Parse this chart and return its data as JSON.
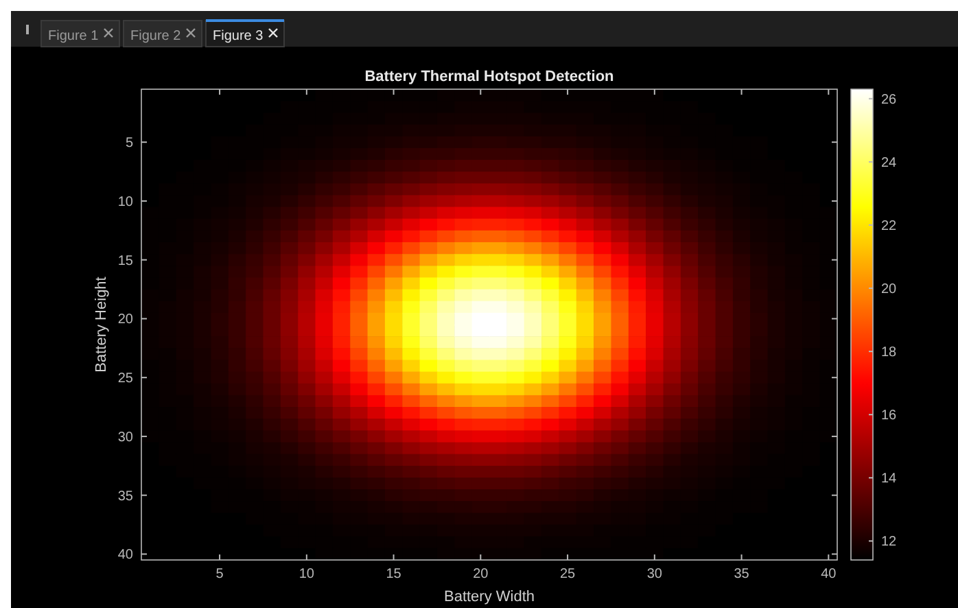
{
  "chart_data": {
    "type": "heatmap",
    "title": "Battery Thermal Hotspot Detection",
    "xlabel": "Battery Width",
    "ylabel": "Battery Height",
    "annotations": [
      "Figure 1",
      "Figure 2",
      "Figure 3"
    ],
    "xlim": [
      0.5,
      40.5
    ],
    "ylim": [
      40.5,
      0.5
    ],
    "xticks": [
      5,
      10,
      15,
      20,
      25,
      30,
      35,
      40
    ],
    "yticks": [
      5,
      10,
      15,
      20,
      25,
      30,
      35,
      40
    ],
    "clim": [
      11.4,
      26.3
    ],
    "cticks": [
      12,
      14,
      16,
      18,
      20,
      22,
      24,
      26
    ],
    "cells": [
      [
        11.4,
        11.4,
        11.4,
        11.4,
        11.4,
        11.4,
        11.4,
        11.4,
        11.4,
        11.4,
        11.5,
        11.5,
        11.5,
        11.5,
        11.5,
        11.5,
        11.5,
        11.6,
        11.6,
        11.6,
        11.6,
        11.6,
        11.6,
        11.5,
        11.5,
        11.5,
        11.5,
        11.5,
        11.5,
        11.5,
        11.4,
        11.4,
        11.4,
        11.4,
        11.4,
        11.4,
        11.4,
        11.4,
        11.4,
        11.4
      ],
      [
        11.4,
        11.4,
        11.4,
        11.4,
        11.4,
        11.4,
        11.4,
        11.4,
        11.5,
        11.5,
        11.5,
        11.5,
        11.5,
        11.6,
        11.6,
        11.6,
        11.6,
        11.6,
        11.7,
        11.7,
        11.7,
        11.7,
        11.6,
        11.6,
        11.6,
        11.6,
        11.6,
        11.5,
        11.5,
        11.5,
        11.5,
        11.5,
        11.4,
        11.4,
        11.4,
        11.4,
        11.4,
        11.4,
        11.4,
        11.4
      ],
      [
        11.4,
        11.4,
        11.4,
        11.4,
        11.4,
        11.4,
        11.4,
        11.5,
        11.5,
        11.5,
        11.5,
        11.6,
        11.6,
        11.6,
        11.7,
        11.7,
        11.7,
        11.8,
        11.8,
        11.8,
        11.8,
        11.8,
        11.8,
        11.7,
        11.7,
        11.7,
        11.6,
        11.6,
        11.6,
        11.5,
        11.5,
        11.5,
        11.5,
        11.4,
        11.4,
        11.4,
        11.4,
        11.4,
        11.4,
        11.4
      ],
      [
        11.4,
        11.4,
        11.4,
        11.4,
        11.4,
        11.4,
        11.5,
        11.5,
        11.5,
        11.6,
        11.6,
        11.7,
        11.7,
        11.8,
        11.8,
        11.9,
        11.9,
        11.9,
        12.0,
        12.0,
        12.0,
        12.0,
        11.9,
        11.9,
        11.9,
        11.8,
        11.8,
        11.7,
        11.7,
        11.6,
        11.6,
        11.5,
        11.5,
        11.5,
        11.4,
        11.4,
        11.4,
        11.4,
        11.4,
        11.4
      ],
      [
        11.4,
        11.4,
        11.4,
        11.4,
        11.5,
        11.5,
        11.5,
        11.5,
        11.6,
        11.6,
        11.7,
        11.8,
        11.8,
        11.9,
        12.0,
        12.1,
        12.1,
        12.2,
        12.2,
        12.3,
        12.3,
        12.2,
        12.2,
        12.1,
        12.1,
        12.0,
        11.9,
        11.8,
        11.8,
        11.7,
        11.6,
        11.6,
        11.5,
        11.5,
        11.5,
        11.5,
        11.4,
        11.4,
        11.4,
        11.4
      ],
      [
        11.4,
        11.4,
        11.4,
        11.4,
        11.5,
        11.5,
        11.5,
        11.6,
        11.7,
        11.7,
        11.8,
        11.9,
        12.0,
        12.1,
        12.3,
        12.4,
        12.5,
        12.5,
        12.6,
        12.6,
        12.6,
        12.6,
        12.5,
        12.5,
        12.4,
        12.3,
        12.1,
        12.0,
        11.9,
        11.8,
        11.7,
        11.7,
        11.6,
        11.5,
        11.5,
        11.5,
        11.4,
        11.4,
        11.4,
        11.4
      ],
      [
        11.4,
        11.4,
        11.4,
        11.5,
        11.5,
        11.5,
        11.6,
        11.7,
        11.8,
        11.9,
        12.0,
        12.1,
        12.3,
        12.4,
        12.6,
        12.7,
        12.9,
        13.0,
        13.1,
        13.1,
        13.1,
        13.1,
        13.0,
        12.9,
        12.7,
        12.6,
        12.4,
        12.3,
        12.1,
        12.0,
        11.9,
        11.8,
        11.7,
        11.6,
        11.5,
        11.5,
        11.5,
        11.4,
        11.4,
        11.4
      ],
      [
        11.4,
        11.4,
        11.5,
        11.5,
        11.5,
        11.6,
        11.7,
        11.8,
        11.9,
        12.0,
        12.2,
        12.4,
        12.6,
        12.8,
        13.0,
        13.2,
        13.4,
        13.6,
        13.7,
        13.7,
        13.7,
        13.7,
        13.6,
        13.4,
        13.2,
        13.0,
        12.8,
        12.6,
        12.4,
        12.2,
        12.0,
        11.9,
        11.8,
        11.7,
        11.6,
        11.5,
        11.5,
        11.5,
        11.4,
        11.4
      ],
      [
        11.4,
        11.5,
        11.5,
        11.5,
        11.6,
        11.7,
        11.8,
        11.9,
        12.0,
        12.2,
        12.5,
        12.7,
        13.0,
        13.3,
        13.6,
        13.8,
        14.1,
        14.3,
        14.4,
        14.5,
        14.5,
        14.4,
        14.3,
        14.1,
        13.8,
        13.6,
        13.3,
        13.0,
        12.7,
        12.5,
        12.2,
        12.0,
        11.9,
        11.8,
        11.7,
        11.6,
        11.5,
        11.5,
        11.5,
        11.4
      ],
      [
        11.4,
        11.5,
        11.5,
        11.6,
        11.6,
        11.7,
        11.9,
        12.0,
        12.2,
        12.5,
        12.8,
        13.1,
        13.5,
        13.8,
        14.2,
        14.6,
        14.9,
        15.1,
        15.3,
        15.4,
        15.4,
        15.3,
        15.1,
        14.9,
        14.6,
        14.2,
        13.8,
        13.5,
        13.1,
        12.8,
        12.5,
        12.2,
        12.0,
        11.9,
        11.7,
        11.6,
        11.6,
        11.5,
        11.5,
        11.4
      ],
      [
        11.5,
        11.5,
        11.5,
        11.6,
        11.7,
        11.8,
        12.0,
        12.2,
        12.5,
        12.8,
        13.2,
        13.6,
        14.0,
        14.5,
        15.0,
        15.4,
        15.8,
        16.2,
        16.4,
        16.5,
        16.5,
        16.4,
        16.2,
        15.8,
        15.4,
        15.0,
        14.5,
        14.0,
        13.6,
        13.2,
        12.8,
        12.5,
        12.2,
        12.0,
        11.8,
        11.7,
        11.6,
        11.5,
        11.5,
        11.5
      ],
      [
        11.5,
        11.5,
        11.6,
        11.7,
        11.8,
        11.9,
        12.1,
        12.4,
        12.7,
        13.1,
        13.6,
        14.1,
        14.7,
        15.2,
        15.8,
        16.4,
        16.9,
        17.3,
        17.6,
        17.7,
        17.7,
        17.6,
        17.3,
        16.9,
        16.4,
        15.8,
        15.2,
        14.7,
        14.1,
        13.6,
        13.1,
        12.7,
        12.4,
        12.1,
        11.9,
        11.8,
        11.7,
        11.6,
        11.5,
        11.5
      ],
      [
        11.5,
        11.5,
        11.6,
        11.7,
        11.8,
        12.0,
        12.3,
        12.6,
        13.0,
        13.5,
        14.0,
        14.7,
        15.3,
        16.1,
        16.8,
        17.4,
        18.0,
        18.5,
        18.9,
        19.1,
        19.1,
        18.9,
        18.5,
        18.0,
        17.4,
        16.8,
        16.1,
        15.3,
        14.7,
        14.0,
        13.5,
        13.0,
        12.6,
        12.3,
        12.0,
        11.8,
        11.7,
        11.6,
        11.5,
        11.5
      ],
      [
        11.5,
        11.6,
        11.6,
        11.8,
        11.9,
        12.1,
        12.4,
        12.8,
        13.3,
        13.8,
        14.5,
        15.2,
        16.1,
        16.9,
        17.7,
        18.5,
        19.2,
        19.8,
        20.2,
        20.5,
        20.5,
        20.2,
        19.8,
        19.2,
        18.5,
        17.7,
        16.9,
        16.1,
        15.2,
        14.5,
        13.8,
        13.3,
        12.8,
        12.4,
        12.1,
        11.9,
        11.8,
        11.6,
        11.6,
        11.5
      ],
      [
        11.5,
        11.6,
        11.7,
        11.8,
        12.0,
        12.3,
        12.6,
        13.0,
        13.6,
        14.2,
        15.0,
        15.8,
        16.8,
        17.7,
        18.7,
        19.6,
        20.5,
        21.1,
        21.6,
        21.8,
        21.8,
        21.6,
        21.1,
        20.5,
        19.6,
        18.7,
        17.7,
        16.8,
        15.8,
        15.0,
        14.2,
        13.6,
        13.0,
        12.6,
        12.3,
        12.0,
        11.8,
        11.7,
        11.6,
        11.5
      ],
      [
        11.5,
        11.6,
        11.7,
        11.9,
        12.1,
        12.4,
        12.7,
        13.2,
        13.8,
        14.6,
        15.4,
        16.4,
        17.4,
        18.5,
        19.6,
        20.7,
        21.6,
        22.3,
        22.9,
        23.2,
        23.2,
        22.9,
        22.3,
        21.6,
        20.7,
        19.6,
        18.5,
        17.4,
        16.4,
        15.4,
        14.6,
        13.8,
        13.2,
        12.7,
        12.4,
        12.1,
        11.9,
        11.7,
        11.6,
        11.5
      ],
      [
        11.5,
        11.6,
        11.7,
        11.9,
        12.1,
        12.5,
        12.9,
        13.4,
        14.1,
        14.9,
        15.8,
        16.9,
        18.0,
        19.2,
        20.5,
        21.6,
        22.6,
        23.4,
        24.0,
        24.3,
        24.3,
        24.0,
        23.4,
        22.6,
        21.6,
        20.5,
        19.2,
        18.0,
        16.9,
        15.8,
        14.9,
        14.1,
        13.4,
        12.9,
        12.5,
        12.1,
        11.9,
        11.7,
        11.6,
        11.5
      ],
      [
        11.6,
        11.6,
        11.8,
        11.9,
        12.2,
        12.5,
        13.0,
        13.6,
        14.3,
        15.1,
        16.2,
        17.3,
        18.5,
        19.8,
        21.1,
        22.3,
        23.4,
        24.3,
        25.0,
        25.3,
        25.3,
        25.0,
        24.3,
        23.4,
        22.3,
        21.1,
        19.8,
        18.5,
        17.3,
        16.2,
        15.1,
        14.3,
        13.6,
        13.0,
        12.5,
        12.2,
        11.9,
        11.8,
        11.6,
        11.6
      ],
      [
        11.6,
        11.7,
        11.8,
        12.0,
        12.2,
        12.6,
        13.1,
        13.7,
        14.4,
        15.3,
        16.4,
        17.6,
        18.9,
        20.2,
        21.6,
        22.9,
        24.0,
        25.0,
        25.6,
        26.0,
        26.0,
        25.6,
        25.0,
        24.0,
        22.9,
        21.6,
        20.2,
        18.9,
        17.6,
        16.4,
        15.3,
        14.4,
        13.7,
        13.1,
        12.6,
        12.2,
        12.0,
        11.8,
        11.7,
        11.6
      ],
      [
        11.6,
        11.7,
        11.8,
        12.0,
        12.3,
        12.6,
        13.1,
        13.7,
        14.5,
        15.4,
        16.5,
        17.7,
        19.1,
        20.5,
        21.8,
        23.2,
        24.3,
        25.3,
        26.0,
        26.3,
        26.3,
        26.0,
        25.3,
        24.3,
        23.2,
        21.8,
        20.5,
        19.1,
        17.7,
        16.5,
        15.4,
        14.5,
        13.7,
        13.1,
        12.6,
        12.3,
        12.0,
        11.8,
        11.7,
        11.6
      ],
      [
        11.6,
        11.7,
        11.8,
        12.0,
        12.3,
        12.6,
        13.1,
        13.7,
        14.5,
        15.4,
        16.5,
        17.7,
        19.1,
        20.5,
        21.8,
        23.2,
        24.3,
        25.3,
        26.0,
        26.3,
        26.3,
        26.0,
        25.3,
        24.3,
        23.2,
        21.8,
        20.5,
        19.1,
        17.7,
        16.5,
        15.4,
        14.5,
        13.7,
        13.1,
        12.6,
        12.3,
        12.0,
        11.8,
        11.7,
        11.6
      ],
      [
        11.6,
        11.7,
        11.8,
        12.0,
        12.2,
        12.6,
        13.1,
        13.7,
        14.4,
        15.3,
        16.4,
        17.6,
        18.9,
        20.2,
        21.6,
        22.9,
        24.0,
        25.0,
        25.6,
        26.0,
        26.0,
        25.6,
        25.0,
        24.0,
        22.9,
        21.6,
        20.2,
        18.9,
        17.6,
        16.4,
        15.3,
        14.4,
        13.7,
        13.1,
        12.6,
        12.2,
        12.0,
        11.8,
        11.7,
        11.6
      ],
      [
        11.6,
        11.6,
        11.8,
        11.9,
        12.2,
        12.5,
        13.0,
        13.6,
        14.3,
        15.1,
        16.2,
        17.3,
        18.5,
        19.8,
        21.1,
        22.3,
        23.4,
        24.3,
        25.0,
        25.3,
        25.3,
        25.0,
        24.3,
        23.4,
        22.3,
        21.1,
        19.8,
        18.5,
        17.3,
        16.2,
        15.1,
        14.3,
        13.6,
        13.0,
        12.5,
        12.2,
        11.9,
        11.8,
        11.6,
        11.6
      ],
      [
        11.5,
        11.6,
        11.7,
        11.9,
        12.1,
        12.5,
        12.9,
        13.4,
        14.1,
        14.9,
        15.8,
        16.9,
        18.0,
        19.2,
        20.5,
        21.6,
        22.6,
        23.4,
        24.0,
        24.3,
        24.3,
        24.0,
        23.4,
        22.6,
        21.6,
        20.5,
        19.2,
        18.0,
        16.9,
        15.8,
        14.9,
        14.1,
        13.4,
        12.9,
        12.5,
        12.1,
        11.9,
        11.7,
        11.6,
        11.5
      ],
      [
        11.5,
        11.6,
        11.7,
        11.9,
        12.1,
        12.4,
        12.7,
        13.2,
        13.8,
        14.6,
        15.4,
        16.4,
        17.4,
        18.5,
        19.6,
        20.7,
        21.6,
        22.3,
        22.9,
        23.2,
        23.2,
        22.9,
        22.3,
        21.6,
        20.7,
        19.6,
        18.5,
        17.4,
        16.4,
        15.4,
        14.6,
        13.8,
        13.2,
        12.7,
        12.4,
        12.1,
        11.9,
        11.7,
        11.6,
        11.5
      ],
      [
        11.5,
        11.6,
        11.7,
        11.8,
        12.0,
        12.3,
        12.6,
        13.0,
        13.6,
        14.2,
        15.0,
        15.8,
        16.8,
        17.7,
        18.7,
        19.6,
        20.5,
        21.1,
        21.6,
        21.8,
        21.8,
        21.6,
        21.1,
        20.5,
        19.6,
        18.7,
        17.7,
        16.8,
        15.8,
        15.0,
        14.2,
        13.6,
        13.0,
        12.6,
        12.3,
        12.0,
        11.8,
        11.7,
        11.6,
        11.5
      ],
      [
        11.5,
        11.6,
        11.6,
        11.8,
        11.9,
        12.1,
        12.4,
        12.8,
        13.3,
        13.8,
        14.5,
        15.2,
        16.1,
        16.9,
        17.7,
        18.5,
        19.2,
        19.8,
        20.2,
        20.5,
        20.5,
        20.2,
        19.8,
        19.2,
        18.5,
        17.7,
        16.9,
        16.1,
        15.2,
        14.5,
        13.8,
        13.3,
        12.8,
        12.4,
        12.1,
        11.9,
        11.8,
        11.6,
        11.6,
        11.5
      ],
      [
        11.5,
        11.5,
        11.6,
        11.7,
        11.8,
        12.0,
        12.3,
        12.6,
        13.0,
        13.5,
        14.0,
        14.7,
        15.3,
        16.1,
        16.8,
        17.4,
        18.0,
        18.5,
        18.9,
        19.1,
        19.1,
        18.9,
        18.5,
        18.0,
        17.4,
        16.8,
        16.1,
        15.3,
        14.7,
        14.0,
        13.5,
        13.0,
        12.6,
        12.3,
        12.0,
        11.8,
        11.7,
        11.6,
        11.5,
        11.5
      ],
      [
        11.5,
        11.5,
        11.6,
        11.7,
        11.8,
        11.9,
        12.1,
        12.4,
        12.7,
        13.1,
        13.6,
        14.1,
        14.7,
        15.2,
        15.8,
        16.4,
        16.9,
        17.3,
        17.6,
        17.7,
        17.7,
        17.6,
        17.3,
        16.9,
        16.4,
        15.8,
        15.2,
        14.7,
        14.1,
        13.6,
        13.1,
        12.7,
        12.4,
        12.1,
        11.9,
        11.8,
        11.7,
        11.6,
        11.5,
        11.5
      ],
      [
        11.5,
        11.5,
        11.5,
        11.6,
        11.7,
        11.8,
        12.0,
        12.2,
        12.5,
        12.8,
        13.2,
        13.6,
        14.0,
        14.5,
        15.0,
        15.4,
        15.8,
        16.2,
        16.4,
        16.5,
        16.5,
        16.4,
        16.2,
        15.8,
        15.4,
        15.0,
        14.5,
        14.0,
        13.6,
        13.2,
        12.8,
        12.5,
        12.2,
        12.0,
        11.8,
        11.7,
        11.6,
        11.5,
        11.5,
        11.5
      ],
      [
        11.4,
        11.5,
        11.5,
        11.6,
        11.6,
        11.7,
        11.9,
        12.0,
        12.2,
        12.5,
        12.8,
        13.1,
        13.5,
        13.8,
        14.2,
        14.6,
        14.9,
        15.1,
        15.3,
        15.4,
        15.4,
        15.3,
        15.1,
        14.9,
        14.6,
        14.2,
        13.8,
        13.5,
        13.1,
        12.8,
        12.5,
        12.2,
        12.0,
        11.9,
        11.7,
        11.6,
        11.6,
        11.5,
        11.5,
        11.4
      ],
      [
        11.4,
        11.5,
        11.5,
        11.5,
        11.6,
        11.7,
        11.8,
        11.9,
        12.0,
        12.2,
        12.5,
        12.7,
        13.0,
        13.3,
        13.6,
        13.8,
        14.1,
        14.3,
        14.4,
        14.5,
        14.5,
        14.4,
        14.3,
        14.1,
        13.8,
        13.6,
        13.3,
        13.0,
        12.7,
        12.5,
        12.2,
        12.0,
        11.9,
        11.8,
        11.7,
        11.6,
        11.5,
        11.5,
        11.5,
        11.4
      ],
      [
        11.4,
        11.4,
        11.5,
        11.5,
        11.5,
        11.6,
        11.7,
        11.8,
        11.9,
        12.0,
        12.2,
        12.4,
        12.6,
        12.8,
        13.0,
        13.2,
        13.4,
        13.6,
        13.7,
        13.7,
        13.7,
        13.7,
        13.6,
        13.4,
        13.2,
        13.0,
        12.8,
        12.6,
        12.4,
        12.2,
        12.0,
        11.9,
        11.8,
        11.7,
        11.6,
        11.5,
        11.5,
        11.5,
        11.4,
        11.4
      ],
      [
        11.4,
        11.4,
        11.4,
        11.5,
        11.5,
        11.5,
        11.6,
        11.7,
        11.8,
        11.9,
        12.0,
        12.1,
        12.3,
        12.4,
        12.6,
        12.7,
        12.9,
        13.0,
        13.1,
        13.1,
        13.1,
        13.1,
        13.0,
        12.9,
        12.7,
        12.6,
        12.4,
        12.3,
        12.1,
        12.0,
        11.9,
        11.8,
        11.7,
        11.6,
        11.5,
        11.5,
        11.5,
        11.4,
        11.4,
        11.4
      ],
      [
        11.4,
        11.4,
        11.4,
        11.4,
        11.5,
        11.5,
        11.5,
        11.6,
        11.7,
        11.7,
        11.8,
        11.9,
        12.0,
        12.1,
        12.3,
        12.4,
        12.5,
        12.5,
        12.6,
        12.6,
        12.6,
        12.6,
        12.5,
        12.5,
        12.4,
        12.3,
        12.1,
        12.0,
        11.9,
        11.8,
        11.7,
        11.7,
        11.6,
        11.5,
        11.5,
        11.5,
        11.4,
        11.4,
        11.4,
        11.4
      ],
      [
        11.4,
        11.4,
        11.4,
        11.4,
        11.5,
        11.5,
        11.5,
        11.5,
        11.6,
        11.6,
        11.7,
        11.8,
        11.8,
        11.9,
        12.0,
        12.1,
        12.1,
        12.2,
        12.2,
        12.3,
        12.3,
        12.2,
        12.2,
        12.1,
        12.1,
        12.0,
        11.9,
        11.8,
        11.8,
        11.7,
        11.6,
        11.6,
        11.5,
        11.5,
        11.5,
        11.5,
        11.4,
        11.4,
        11.4,
        11.4
      ],
      [
        11.4,
        11.4,
        11.4,
        11.4,
        11.4,
        11.4,
        11.5,
        11.5,
        11.5,
        11.6,
        11.6,
        11.7,
        11.7,
        11.8,
        11.8,
        11.9,
        11.9,
        11.9,
        12.0,
        12.0,
        12.0,
        12.0,
        11.9,
        11.9,
        11.9,
        11.8,
        11.8,
        11.7,
        11.7,
        11.6,
        11.6,
        11.5,
        11.5,
        11.5,
        11.4,
        11.4,
        11.4,
        11.4,
        11.4,
        11.4
      ],
      [
        11.4,
        11.4,
        11.4,
        11.4,
        11.4,
        11.4,
        11.4,
        11.5,
        11.5,
        11.5,
        11.5,
        11.6,
        11.6,
        11.6,
        11.7,
        11.7,
        11.7,
        11.8,
        11.8,
        11.8,
        11.8,
        11.8,
        11.8,
        11.7,
        11.7,
        11.7,
        11.6,
        11.6,
        11.6,
        11.5,
        11.5,
        11.5,
        11.5,
        11.4,
        11.4,
        11.4,
        11.4,
        11.4,
        11.4,
        11.4
      ],
      [
        11.4,
        11.4,
        11.4,
        11.4,
        11.4,
        11.4,
        11.4,
        11.4,
        11.5,
        11.5,
        11.5,
        11.5,
        11.5,
        11.6,
        11.6,
        11.6,
        11.6,
        11.6,
        11.7,
        11.7,
        11.7,
        11.7,
        11.6,
        11.6,
        11.6,
        11.6,
        11.6,
        11.5,
        11.5,
        11.5,
        11.5,
        11.5,
        11.4,
        11.4,
        11.4,
        11.4,
        11.4,
        11.4,
        11.4,
        11.4
      ],
      [
        11.4,
        11.4,
        11.4,
        11.4,
        11.4,
        11.4,
        11.4,
        11.4,
        11.4,
        11.4,
        11.5,
        11.5,
        11.5,
        11.5,
        11.5,
        11.5,
        11.5,
        11.6,
        11.6,
        11.6,
        11.6,
        11.6,
        11.6,
        11.5,
        11.5,
        11.5,
        11.5,
        11.5,
        11.5,
        11.5,
        11.4,
        11.4,
        11.4,
        11.4,
        11.4,
        11.4,
        11.4,
        11.4,
        11.4,
        11.4
      ]
    ]
  }
}
